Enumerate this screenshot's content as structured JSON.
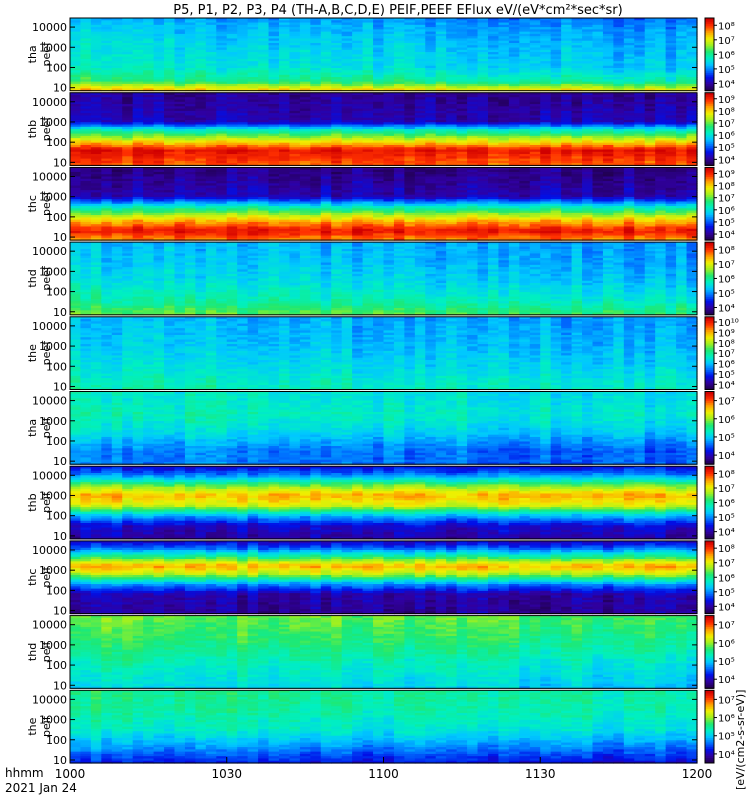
{
  "chart_data": {
    "type": "heatmap",
    "title": "P5, P1, P2, P3, P4 (TH-A,B,C,D,E) PEIF,PEEF EFlux eV/(eV*cm²*sec*sr)",
    "colorbar_title": "[eV/(cm2-s-sr-eV)]",
    "x_ticks": [
      "1000",
      "1030",
      "1100",
      "1130",
      "1200"
    ],
    "x_range_minutes": [
      600,
      720
    ],
    "x_label_top": "hhmm",
    "x_label_bottom": "2021 Jan 24",
    "y_ticks": [
      "10",
      "100",
      "1000",
      "10000"
    ],
    "y_range_log": [
      0.85,
      4.45
    ],
    "panels": [
      {
        "probe": "tha",
        "quantity": "peef",
        "cb_ticks": [
          "10⁴",
          "10⁵",
          "10⁶",
          "10⁷",
          "10⁸"
        ],
        "profile": [
          [
            0.9,
            0.78
          ],
          [
            1.3,
            0.55
          ],
          [
            2.0,
            0.45
          ],
          [
            3.0,
            0.42
          ],
          [
            4.0,
            0.38
          ],
          [
            4.45,
            0.34
          ]
        ],
        "trend": -0.08
      },
      {
        "probe": "thb",
        "quantity": "peef",
        "cb_ticks": [
          "10⁴",
          "10⁵",
          "10⁶",
          "10⁷",
          "10⁸",
          "10⁹"
        ],
        "profile": [
          [
            0.9,
            0.88
          ],
          [
            1.6,
            0.97
          ],
          [
            2.0,
            0.75
          ],
          [
            2.6,
            0.45
          ],
          [
            3.0,
            0.12
          ],
          [
            4.45,
            0.08
          ]
        ],
        "trend": 0.0
      },
      {
        "probe": "thc",
        "quantity": "peef",
        "cb_ticks": [
          "10⁴",
          "10⁵",
          "10⁶",
          "10⁷",
          "10⁸",
          "10⁹"
        ],
        "profile": [
          [
            0.9,
            0.85
          ],
          [
            1.3,
            0.97
          ],
          [
            1.8,
            0.8
          ],
          [
            2.5,
            0.45
          ],
          [
            3.0,
            0.12
          ],
          [
            4.45,
            0.06
          ]
        ],
        "trend": 0.0
      },
      {
        "probe": "thd",
        "quantity": "peef",
        "cb_ticks": [
          "10⁴",
          "10⁵",
          "10⁶",
          "10⁷",
          "10⁸"
        ],
        "profile": [
          [
            0.9,
            0.6
          ],
          [
            1.5,
            0.5
          ],
          [
            2.5,
            0.42
          ],
          [
            3.5,
            0.38
          ],
          [
            4.45,
            0.36
          ]
        ],
        "trend": -0.06
      },
      {
        "probe": "the",
        "quantity": "peef",
        "cb_ticks": [
          "10⁴",
          "10⁵",
          "10⁶",
          "10⁷",
          "10⁸",
          "10⁹",
          "10¹⁰"
        ],
        "profile": [
          [
            0.9,
            0.48
          ],
          [
            2.0,
            0.42
          ],
          [
            3.0,
            0.38
          ],
          [
            4.45,
            0.35
          ]
        ],
        "trend": -0.03
      },
      {
        "probe": "tha",
        "quantity": "peif",
        "cb_ticks": [
          "10⁴",
          "10⁵",
          "10⁶",
          "10⁷"
        ],
        "profile": [
          [
            0.9,
            0.3
          ],
          [
            1.5,
            0.3
          ],
          [
            2.5,
            0.42
          ],
          [
            3.3,
            0.48
          ],
          [
            4.0,
            0.45
          ],
          [
            4.45,
            0.45
          ]
        ],
        "trend": -0.05
      },
      {
        "probe": "thb",
        "quantity": "peif",
        "cb_ticks": [
          "10⁴",
          "10⁵",
          "10⁶",
          "10⁷",
          "10⁸"
        ],
        "profile": [
          [
            0.9,
            0.1
          ],
          [
            1.5,
            0.15
          ],
          [
            2.0,
            0.35
          ],
          [
            2.5,
            0.7
          ],
          [
            3.0,
            0.8
          ],
          [
            3.5,
            0.6
          ],
          [
            4.0,
            0.3
          ],
          [
            4.45,
            0.15
          ]
        ],
        "trend": 0.0
      },
      {
        "probe": "thc",
        "quantity": "peif",
        "cb_ticks": [
          "10⁴",
          "10⁵",
          "10⁶",
          "10⁷",
          "10⁸"
        ],
        "profile": [
          [
            0.9,
            0.08
          ],
          [
            1.8,
            0.1
          ],
          [
            2.3,
            0.3
          ],
          [
            2.8,
            0.65
          ],
          [
            3.2,
            0.8
          ],
          [
            3.6,
            0.55
          ],
          [
            4.1,
            0.25
          ],
          [
            4.45,
            0.12
          ]
        ],
        "trend": 0.0
      },
      {
        "probe": "thd",
        "quantity": "peif",
        "cb_ticks": [
          "10⁴",
          "10⁵",
          "10⁶",
          "10⁷"
        ],
        "profile": [
          [
            0.9,
            0.42
          ],
          [
            2.0,
            0.48
          ],
          [
            3.0,
            0.55
          ],
          [
            4.0,
            0.6
          ],
          [
            4.45,
            0.62
          ]
        ],
        "trend": -0.06
      },
      {
        "probe": "the",
        "quantity": "peif",
        "cb_ticks": [
          "10⁴",
          "10⁵",
          "10⁶",
          "10⁷"
        ],
        "profile": [
          [
            0.9,
            0.2
          ],
          [
            1.5,
            0.3
          ],
          [
            2.5,
            0.45
          ],
          [
            3.5,
            0.5
          ],
          [
            4.45,
            0.52
          ]
        ],
        "trend": -0.04
      }
    ],
    "colorscale": [
      "#20004a",
      "#3000a0",
      "#0010e8",
      "#0070ff",
      "#00c8ff",
      "#00f0c0",
      "#20e870",
      "#a0f020",
      "#f0f000",
      "#ffa000",
      "#ff3000",
      "#d00000"
    ]
  }
}
